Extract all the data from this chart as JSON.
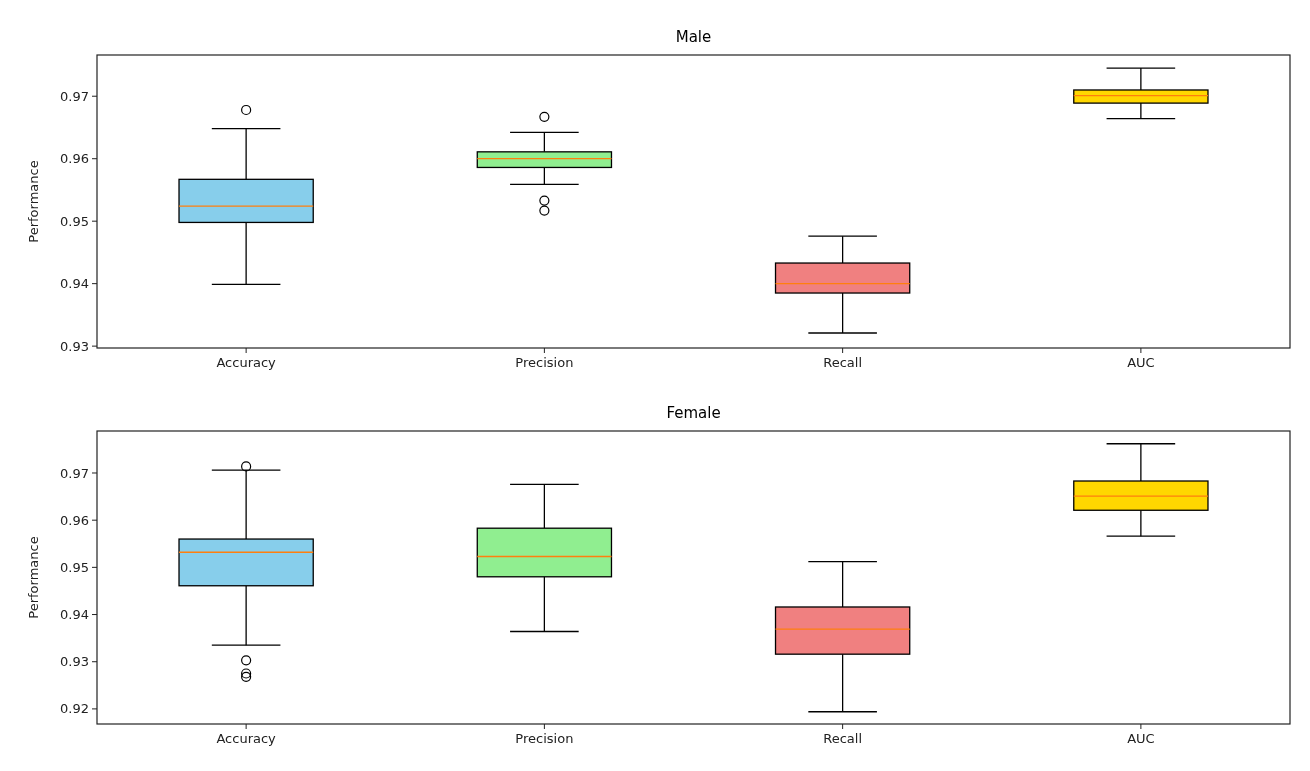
{
  "chart_data": [
    {
      "type": "box",
      "title": "Male",
      "ylabel": "Performance",
      "categories": [
        "Accuracy",
        "Precision",
        "Recall",
        "AUC"
      ],
      "colors": [
        "#87ceeb",
        "#90ee90",
        "#f08080",
        "#ffd700"
      ],
      "ylim": [
        0.9297,
        0.9766
      ],
      "yticks": [
        0.93,
        0.94,
        0.95,
        0.96,
        0.97
      ],
      "boxes": [
        {
          "low": 0.9399,
          "q1": 0.9498,
          "median": 0.9524,
          "q3": 0.9567,
          "high": 0.9648,
          "outliers": [
            0.9678
          ]
        },
        {
          "low": 0.9559,
          "q1": 0.9586,
          "median": 0.96,
          "q3": 0.9611,
          "high": 0.9642,
          "outliers": [
            0.9667,
            0.9533,
            0.9517
          ]
        },
        {
          "low": 0.9321,
          "q1": 0.9385,
          "median": 0.94,
          "q3": 0.9433,
          "high": 0.9476
        },
        {
          "low": 0.9664,
          "q1": 0.9689,
          "median": 0.9701,
          "q3": 0.971,
          "high": 0.9745
        }
      ]
    },
    {
      "type": "box",
      "title": "Female",
      "ylabel": "Performance",
      "categories": [
        "Accuracy",
        "Precision",
        "Recall",
        "AUC"
      ],
      "colors": [
        "#87ceeb",
        "#90ee90",
        "#f08080",
        "#ffd700"
      ],
      "ylim": [
        0.9168,
        0.9789
      ],
      "yticks": [
        0.92,
        0.93,
        0.94,
        0.95,
        0.96,
        0.97
      ],
      "boxes": [
        {
          "low": 0.9335,
          "q1": 0.9461,
          "median": 0.9532,
          "q3": 0.956,
          "high": 0.9706,
          "outliers": [
            0.9714,
            0.9303,
            0.9275,
            0.9268
          ]
        },
        {
          "low": 0.9364,
          "q1": 0.948,
          "median": 0.9523,
          "q3": 0.9583,
          "high": 0.9676
        },
        {
          "low": 0.9194,
          "q1": 0.9316,
          "median": 0.9369,
          "q3": 0.9416,
          "high": 0.9512
        },
        {
          "low": 0.9566,
          "q1": 0.9621,
          "median": 0.9651,
          "q3": 0.9683,
          "high": 0.9762
        }
      ]
    }
  ]
}
